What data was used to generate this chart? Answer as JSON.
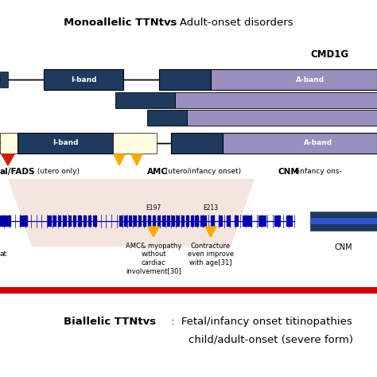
{
  "title_mono_bold": "Monoallelic TTNtvs",
  "title_mono_rest": ":  Adult-onset disorders",
  "title_biallelic_bold": "Biallelic TTNtvs",
  "title_biallelic_rest": ":  Fetal/infancy onset titinopathies",
  "title_biallelic_line2": "child/adult-onset (severe form)",
  "cmd1g_label": "CMD1G",
  "iband_label": "I-band",
  "aband_label": "A-band",
  "iband_label2": "I-band",
  "aband_label2": "A-band",
  "fetal_label": "al/FADS",
  "fetal_sub": " (utero only)",
  "amc_label": "AMC",
  "amc_sub": " (utero/infancy onset)",
  "cnm_label": "CNM",
  "cnm_sub": "(infancy ons-",
  "e197_label": "E197",
  "e213_label": "E213",
  "amc_myopathy": "AMC& myopathy\nwithout\ncardiac\ninvolvement[30]",
  "contracture": "Contracture\neven improve\nwith age[31]",
  "cnm_lower": "CNM",
  "bg_color": "#ffffff",
  "dark_blue": "#1e3a5f",
  "light_purple": "#9b8fc0",
  "cream": "#fffce0",
  "red_sep_color": "#cc0000",
  "gold": "#ffaa00",
  "red_tri": "#cc2200",
  "exon_blue": "#0000aa"
}
